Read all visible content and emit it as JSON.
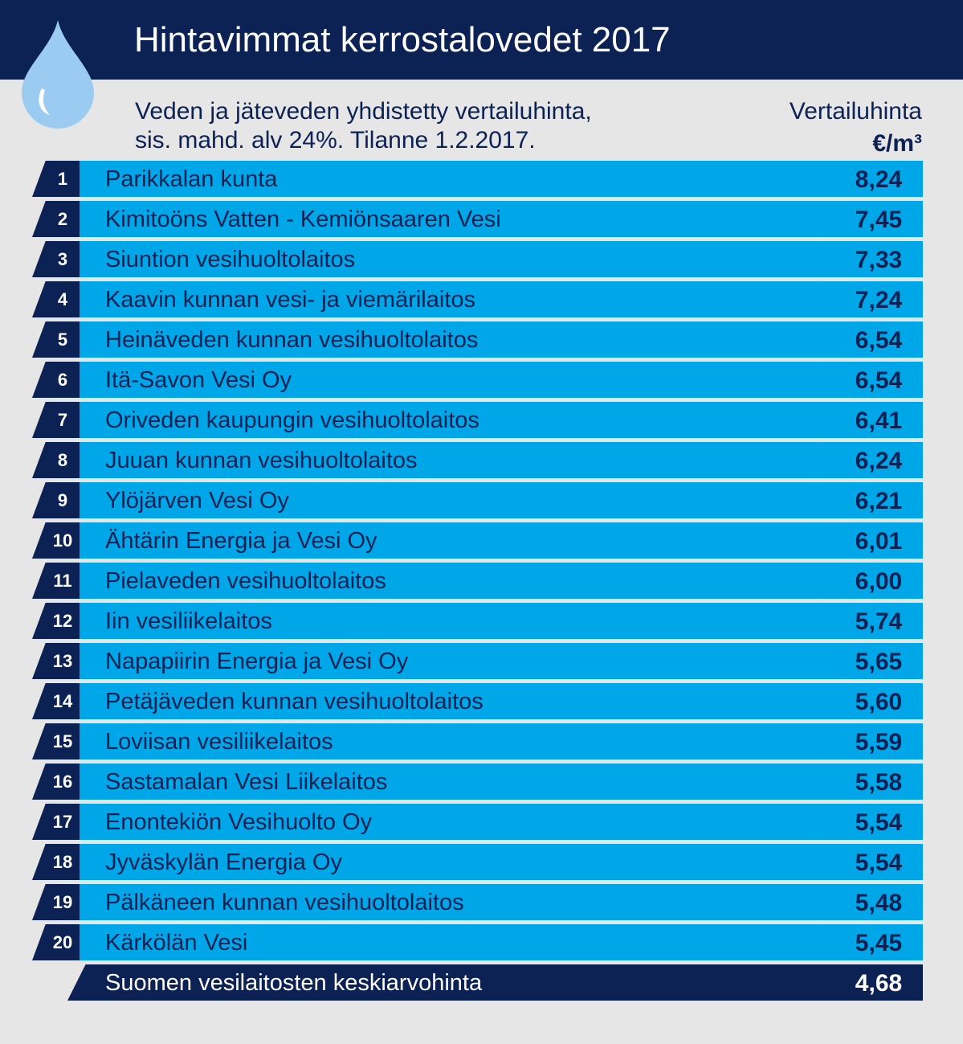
{
  "header": {
    "title": "Hintavimmat kerrostalovedet 2017",
    "subtitle_line1": "Veden ja jäteveden yhdistetty vertailuhinta,",
    "subtitle_line2": "sis. mahd. alv 24%. Tilanne 1.2.2017.",
    "column_label": "Vertailuhinta",
    "column_unit": "€/m³"
  },
  "colors": {
    "navy": "#0c2154",
    "blue": "#00a7e8",
    "background": "#e6e6e6",
    "drop": "#9ccbf2"
  },
  "icon": "water-drop-icon",
  "chart_data": {
    "type": "table",
    "title": "Hintavimmat kerrostalovedet 2017",
    "columns": [
      "",
      "",
      "Vertailuhinta €/m³"
    ],
    "rows": [
      {
        "rank": "1",
        "name": "Parikkalan kunta",
        "value": "8,24"
      },
      {
        "rank": "2",
        "name": "Kimitoöns Vatten - Kemiönsaaren Vesi",
        "value": "7,45"
      },
      {
        "rank": "3",
        "name": "Siuntion vesihuoltolaitos",
        "value": "7,33"
      },
      {
        "rank": "4",
        "name": "Kaavin kunnan vesi- ja viemärilaitos",
        "value": "7,24"
      },
      {
        "rank": "5",
        "name": "Heinäveden kunnan vesihuoltolaitos",
        "value": "6,54"
      },
      {
        "rank": "6",
        "name": "Itä-Savon Vesi Oy",
        "value": "6,54"
      },
      {
        "rank": "7",
        "name": "Oriveden kaupungin vesihuoltolaitos",
        "value": "6,41"
      },
      {
        "rank": "8",
        "name": "Juuan kunnan vesihuoltolaitos",
        "value": "6,24"
      },
      {
        "rank": "9",
        "name": "Ylöjärven Vesi Oy",
        "value": "6,21"
      },
      {
        "rank": "10",
        "name": "Ähtärin Energia ja Vesi Oy",
        "value": "6,01"
      },
      {
        "rank": "11",
        "name": "Pielaveden vesihuoltolaitos",
        "value": "6,00"
      },
      {
        "rank": "12",
        "name": "Iin vesiliikelaitos",
        "value": "5,74"
      },
      {
        "rank": "13",
        "name": "Napapiirin Energia ja Vesi Oy",
        "value": "5,65"
      },
      {
        "rank": "14",
        "name": "Petäjäveden kunnan vesihuoltolaitos",
        "value": "5,60"
      },
      {
        "rank": "15",
        "name": "Loviisan vesiliikelaitos",
        "value": "5,59"
      },
      {
        "rank": "16",
        "name": "Sastamalan Vesi Liikelaitos",
        "value": "5,58"
      },
      {
        "rank": "17",
        "name": "Enontekiön Vesihuolto Oy",
        "value": "5,54"
      },
      {
        "rank": "18",
        "name": "Jyväskylän Energia Oy",
        "value": "5,54"
      },
      {
        "rank": "19",
        "name": "Pälkäneen kunnan vesihuoltolaitos",
        "value": "5,48"
      },
      {
        "rank": "20",
        "name": "Kärkölän Vesi",
        "value": "5,45"
      }
    ],
    "average": {
      "name": "Suomen vesilaitosten keskiarvohinta",
      "value": "4,68"
    }
  }
}
